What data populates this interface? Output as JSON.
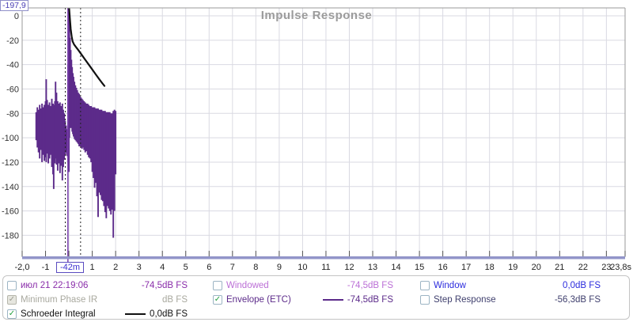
{
  "chart_data": {
    "type": "area",
    "title": "Impulse Response",
    "y_unit_label": "dB FS",
    "x_range": [
      -2.0,
      23.8
    ],
    "y_range_db": [
      -197.9,
      6.5
    ],
    "x_axis_end_label": "23,8s",
    "y_axis_min_label": "-197,9",
    "cursor": {
      "t": -0.042,
      "label": "-42m"
    },
    "window_markers_t": [
      -0.155,
      0.5
    ],
    "grid": true,
    "x_ticks": [
      {
        "t": -2,
        "label": "-2,0"
      },
      {
        "t": -1,
        "label": "-1"
      },
      {
        "t": 0
      },
      {
        "t": 1,
        "label": "1"
      },
      {
        "t": 2,
        "label": "2"
      },
      {
        "t": 3,
        "label": "3"
      },
      {
        "t": 4,
        "label": "4"
      },
      {
        "t": 5,
        "label": "5"
      },
      {
        "t": 6,
        "label": "6"
      },
      {
        "t": 7,
        "label": "7"
      },
      {
        "t": 8,
        "label": "8"
      },
      {
        "t": 9,
        "label": "9"
      },
      {
        "t": 10,
        "label": "10"
      },
      {
        "t": 11,
        "label": "11"
      },
      {
        "t": 12,
        "label": "12"
      },
      {
        "t": 13,
        "label": "13"
      },
      {
        "t": 14,
        "label": "14"
      },
      {
        "t": 15,
        "label": "15"
      },
      {
        "t": 16,
        "label": "16"
      },
      {
        "t": 17,
        "label": "17"
      },
      {
        "t": 18,
        "label": "18"
      },
      {
        "t": 19,
        "label": "19"
      },
      {
        "t": 20,
        "label": "20"
      },
      {
        "t": 21,
        "label": "21"
      },
      {
        "t": 22,
        "label": "22"
      },
      {
        "t": 23,
        "label": "23"
      },
      {
        "t": 23.8,
        "label": "23,8s",
        "anchor": "end",
        "dx": 8
      }
    ],
    "y_ticks": [
      {
        "db": 0,
        "label": "0"
      },
      {
        "db": -20,
        "label": "-20"
      },
      {
        "db": -40,
        "label": "-40"
      },
      {
        "db": -60,
        "label": "-60"
      },
      {
        "db": -80,
        "label": "-80"
      },
      {
        "db": -100,
        "label": "-100"
      },
      {
        "db": -120,
        "label": "-120"
      },
      {
        "db": -140,
        "label": "-140"
      },
      {
        "db": -160,
        "label": "-160"
      },
      {
        "db": -180,
        "label": "-180"
      }
    ],
    "series": [
      {
        "name": "Envelope (ETC)",
        "type": "envelope_bars",
        "color": "#5c2b8a",
        "bars": [
          [
            -1.4,
            -79,
            -102
          ],
          [
            -1.35,
            -75,
            -108
          ],
          [
            -1.3,
            -77,
            -112
          ],
          [
            -1.25,
            -73,
            -117
          ],
          [
            -1.2,
            -76,
            -110
          ],
          [
            -1.15,
            -72,
            -120
          ],
          [
            -1.1,
            -75,
            -114
          ],
          [
            -1.05,
            -73,
            -119
          ],
          [
            -1.0,
            -70,
            -116
          ],
          [
            -0.97,
            -52,
            -120
          ],
          [
            -0.93,
            -69,
            -113
          ],
          [
            -0.88,
            -73,
            -121
          ],
          [
            -0.83,
            -71,
            -117
          ],
          [
            -0.78,
            -74,
            -114
          ],
          [
            -0.73,
            -68,
            -124
          ],
          [
            -0.68,
            -72,
            -130
          ],
          [
            -0.65,
            -73,
            -142
          ],
          [
            -0.6,
            -70,
            -121
          ],
          [
            -0.57,
            -54,
            -117
          ],
          [
            -0.53,
            -63,
            -122
          ],
          [
            -0.48,
            -70,
            -127
          ],
          [
            -0.43,
            -72,
            -121
          ],
          [
            -0.38,
            -71,
            -129
          ],
          [
            -0.33,
            -74,
            -123
          ],
          [
            -0.28,
            -72,
            -135
          ],
          [
            -0.24,
            -77,
            -124
          ],
          [
            -0.2,
            -80,
            -118
          ],
          [
            -0.16,
            -86,
            -114
          ],
          [
            -0.12,
            -90,
            -112
          ],
          [
            -0.08,
            -93,
            -115
          ],
          [
            -0.04,
            -40,
            -120
          ],
          [
            -0.02,
            6,
            -125
          ],
          [
            0.0,
            4,
            -128
          ],
          [
            0.02,
            -6,
            -100
          ],
          [
            0.05,
            -18,
            -92
          ],
          [
            0.08,
            -28,
            -90
          ],
          [
            0.11,
            -36,
            -92
          ],
          [
            0.14,
            -42,
            -95
          ],
          [
            0.17,
            -47,
            -97
          ],
          [
            0.2,
            -50,
            -99
          ],
          [
            0.24,
            -54,
            -101
          ],
          [
            0.28,
            -57,
            -102
          ],
          [
            0.32,
            -59,
            -103
          ],
          [
            0.36,
            -61,
            -104
          ],
          [
            0.4,
            -63,
            -105
          ],
          [
            0.44,
            -64,
            -107
          ],
          [
            0.48,
            -66,
            -107
          ],
          [
            0.52,
            -67,
            -108
          ],
          [
            0.56,
            -68,
            -109
          ],
          [
            0.6,
            -69,
            -108
          ],
          [
            0.65,
            -70,
            -110
          ],
          [
            0.7,
            -71,
            -112
          ],
          [
            0.75,
            -72,
            -111
          ],
          [
            0.8,
            -72,
            -114
          ],
          [
            0.85,
            -73,
            -116
          ],
          [
            0.9,
            -74,
            -117
          ],
          [
            0.95,
            -74,
            -120
          ],
          [
            1.0,
            -75,
            -128
          ],
          [
            1.05,
            -75,
            -133
          ],
          [
            1.1,
            -75,
            -141
          ],
          [
            1.15,
            -76,
            -137
          ],
          [
            1.2,
            -76,
            -148
          ],
          [
            1.25,
            -76,
            -165
          ],
          [
            1.3,
            -77,
            -145
          ],
          [
            1.35,
            -77,
            -147
          ],
          [
            1.4,
            -77,
            -151
          ],
          [
            1.45,
            -78,
            -152
          ],
          [
            1.5,
            -78,
            -156
          ],
          [
            1.55,
            -78,
            -161
          ],
          [
            1.6,
            -79,
            -166
          ],
          [
            1.65,
            -79,
            -156
          ],
          [
            1.7,
            -79,
            -158
          ],
          [
            1.75,
            -79,
            -160
          ],
          [
            1.8,
            -80,
            -163
          ],
          [
            1.85,
            -80,
            -159
          ],
          [
            1.9,
            -78,
            -182
          ],
          [
            1.95,
            -77,
            -160
          ],
          [
            2.0,
            -78,
            -130
          ]
        ]
      },
      {
        "name": "Schroeder Integral",
        "type": "line",
        "color": "#111111",
        "points": [
          [
            0.01,
            6
          ],
          [
            0.04,
            -2
          ],
          [
            0.08,
            -11
          ],
          [
            0.12,
            -17
          ],
          [
            0.16,
            -21
          ],
          [
            0.22,
            -23.5
          ],
          [
            0.3,
            -25.5
          ],
          [
            0.4,
            -28
          ],
          [
            0.55,
            -32
          ],
          [
            0.7,
            -36
          ],
          [
            0.85,
            -40
          ],
          [
            1.0,
            -44
          ],
          [
            1.15,
            -48
          ],
          [
            1.3,
            -52
          ],
          [
            1.42,
            -55
          ],
          [
            1.52,
            -57.5
          ]
        ]
      }
    ],
    "colors": {
      "grid": "#dadae2",
      "frame": "#999999",
      "x_axis_band": "#9295c9",
      "cursor_line": "#7b3fae",
      "window_marker": "#222222",
      "title": "#9b9b9b",
      "tick_text": "#222222"
    }
  },
  "legend": {
    "items": [
      {
        "label": "июл 21 22:19:06",
        "value": "-74,5dB FS",
        "color": "#8a2daa",
        "checked": false,
        "disabled": false,
        "swatch": null
      },
      {
        "label": "Windowed",
        "value": "-74,5dB FS",
        "color": "#bb6fd6",
        "checked": false,
        "disabled": false,
        "swatch": null
      },
      {
        "label": "Window",
        "value": "0,0dB FS",
        "color": "#2b2bdd",
        "checked": false,
        "disabled": false,
        "swatch": null
      },
      {
        "label": "Minimum Phase IR",
        "value": "dB FS",
        "color": "#a9a99f",
        "checked": true,
        "disabled": true,
        "swatch": null
      },
      {
        "label": "Envelope (ETC)",
        "value": "-74,5dB FS",
        "color": "#5c2b8a",
        "checked": true,
        "disabled": false,
        "swatch": "#5c2b8a"
      },
      {
        "label": "Step Response",
        "value": "-56,3dB FS",
        "color": "#40406e",
        "checked": false,
        "disabled": false,
        "swatch": null
      },
      {
        "label": "Schroeder Integral",
        "value": "0,0dB FS",
        "color": "#111111",
        "checked": true,
        "disabled": false,
        "swatch": "#111111"
      }
    ]
  }
}
